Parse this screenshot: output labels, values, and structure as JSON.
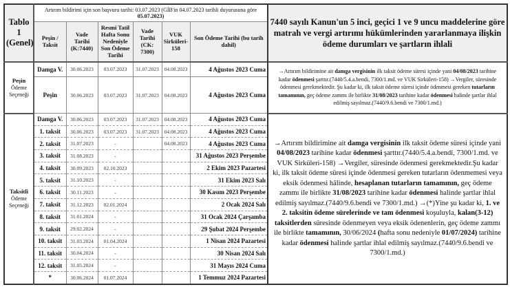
{
  "header": {
    "table_label": "Tablo 1 (Genel)",
    "info_line": "Artırım bildirimi için son başvuru tarihi: 03.07.2023 (GİB'in 04.07.2023 tarihli duyurusuna göre ",
    "info_bold": "05.07.2023)",
    "columns": [
      "Peşin / Taksit",
      "Vade Tarihi (K:7440)",
      "Resmi Tatil Hafta Sonu Nedeniyle Son Ödeme Tarihi",
      "Vade Tarihi (CK: 7300)",
      "VUK Sirküleri-158",
      "Son Ödeme Tarihi (bu tarih dahil)"
    ],
    "title": "7440 sayılı Kanun'un 5 inci, geçici 1 ve 9 uncu maddelerine göre matrah ve vergi artırımı hükümlerinden yararlanmaya ilişkin ödeme durumları ve şartların ihlali"
  },
  "pesin_group": {
    "label": "Peşin Ödeme Seçeneği",
    "rows": [
      [
        "Damga V.",
        "30.06.2023",
        "03.07.2023",
        "31.07.2023",
        "04.08.2023",
        "4 Ağustos 2023 Cuma"
      ],
      [
        "Peşin",
        "30.06.2023",
        "03.07.2023",
        "31.07.2023",
        "04.08.2023",
        "4 Ağustos 2023 Cuma"
      ]
    ],
    "note": [
      {
        "t": "→Artırım bildirimine ait "
      },
      {
        "t": "damga vergisinin",
        "b": true
      },
      {
        "t": " ilk taksit ödeme süresi içinde yani "
      },
      {
        "t": "04/08/2023",
        "b": true
      },
      {
        "t": " tarihine kadar "
      },
      {
        "t": "ödenmesi",
        "b": true
      },
      {
        "t": " şarttır.(7440/5.4.a.bendi, 7300/1.md. ve VUK Sirküleri-158) →Vergiler, süresinde ödenmesi gerekmektedir. Şu kadar ki, ilk taksit ödeme süresi içinde ödenmesi gereken "
      },
      {
        "t": "tutarların tamamının,",
        "b": true
      },
      {
        "t": " geç ödeme zammı ile birlikte "
      },
      {
        "t": "31/08/2023",
        "b": true
      },
      {
        "t": " tarihine kadar "
      },
      {
        "t": "ödenmesi",
        "b": true
      },
      {
        "t": " halinde şartlar ihlal edilmiş sayılmaz.(7440/9.6.bendi ve 7300/1.md.)"
      }
    ]
  },
  "taksit_group": {
    "label": "Taksitli Ödeme Seçeneği",
    "rows": [
      [
        "Damga V.",
        "30.06.2023",
        "03.07.2023",
        "31.07.2023",
        "04.08.2023",
        "4 Ağustos 2023 Cuma"
      ],
      [
        "1. taksit",
        "30.06.2023",
        "03.07.2023",
        "31.07.2023",
        "04.08.2023",
        "4 Ağustos 2023 Cuma"
      ],
      [
        "2. taksit",
        "31.07.2023",
        "-",
        "",
        "04.08.2023",
        "4 Ağustos 2023 Cuma"
      ],
      [
        "3. taksit",
        "31.08.2023",
        "-",
        "",
        "",
        "31 Ağustos 2023 Perşembe"
      ],
      [
        "4. taksit",
        "30.09.2023",
        "02.10.2023",
        "",
        "",
        "2 Ekim 2023 Pazartesi"
      ],
      [
        "5. taksit",
        "31.10.2023",
        "-",
        "",
        "",
        "31 Ekim 2023 Salı"
      ],
      [
        "6. taksit",
        "30.11.2023",
        "-",
        "",
        "",
        "30 Kasım 2023 Perşembe"
      ],
      [
        "7. taksit",
        "31.12.2023",
        "02.01.2024",
        "",
        "",
        "2 Ocak 2024 Salı"
      ],
      [
        "8. taksit",
        "31.01.2024",
        "-",
        "",
        "",
        "31 Ocak 2024 Çarşamba"
      ],
      [
        "9. taksit",
        "29.02.2024",
        "-",
        "",
        "",
        "29 Şubat 2024 Perşembe"
      ],
      [
        "10. taksit",
        "31.03.2024",
        "01.04.2024",
        "",
        "",
        "1 Nisan 2024 Pazartesi"
      ],
      [
        "11. taksit",
        "30.04.2024",
        "-",
        "",
        "",
        "30 Nisan 2024 Salı"
      ],
      [
        "12. taksit",
        "31.05.2024",
        "-",
        "",
        "",
        "31 Mayıs 2024 Cuma"
      ],
      [
        "*",
        "30.06.2024",
        "01.07.2024",
        "",
        "",
        "1 Temmuz 2024 Pazartesi"
      ]
    ],
    "note": [
      {
        "t": "→Artırım bildirimine ait "
      },
      {
        "t": "damga vergisinin",
        "b": true
      },
      {
        "t": " ilk taksit ödeme süresi içinde yani "
      },
      {
        "t": "04/08/2023",
        "b": true
      },
      {
        "t": " tarihine kadar "
      },
      {
        "t": "ödenmesi",
        "b": true
      },
      {
        "t": " şarttır.(7440/5.4.a.bendi, 7300/1.md. ve VUK Sirküleri-158) →Vergiler, süresinde ödenmesi gerekmektedir.Şu kadar ki, ilk taksit ödeme süresi içinde ödenmesi gereken tutarların ödenmemesi veya eksik ödenmesi hâlinde, "
      },
      {
        "t": "hesaplanan tutarların tamamının,",
        "b": true
      },
      {
        "t": " geç ödeme zammı ile birlikte "
      },
      {
        "t": "31/08/2023",
        "b": true
      },
      {
        "t": " tarihine kadar "
      },
      {
        "t": "ödenmesi",
        "b": true
      },
      {
        "t": " halinde şartlar ihlal edilmiş sayılmaz.(7440/9.6.bendi ve 7300/1.md.) →(*)Yine şu kadar ki, "
      },
      {
        "t": "1. ve 2. taksitin ödeme sürelerinde ve tam ödenmesi",
        "b": true
      },
      {
        "t": " koşuluyla, "
      },
      {
        "t": "kalan(3-12) taksitlerden",
        "b": true
      },
      {
        "t": " süresinde ödenmeyen veya eksik ödenenlerin, geç ödeme zammı ile birlikte "
      },
      {
        "t": "tamamının,",
        "b": true
      },
      {
        "t": " 30/06/2024 "
      },
      {
        "t": "(",
        "b": true
      },
      {
        "t": "hafta sonu nedeniyle "
      },
      {
        "t": "01/07/2024)",
        "b": true
      },
      {
        "t": " tarihine kadar "
      },
      {
        "t": "ödenmesi",
        "b": true
      },
      {
        "t": " halinde şartlar ihlal edilmiş sayılmaz.(7440/9.6.bendi ve 7300/1.md.)"
      }
    ]
  }
}
